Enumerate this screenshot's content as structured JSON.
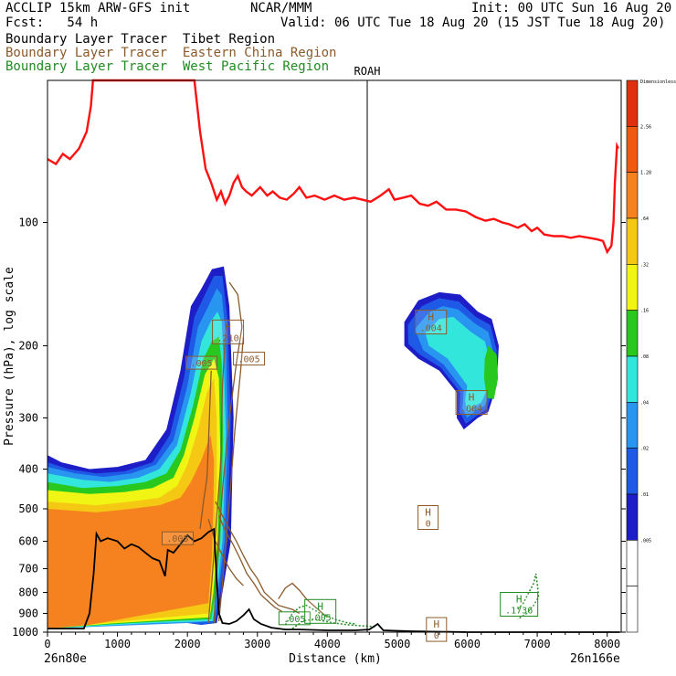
{
  "header": {
    "left1": "ACCLIP 15km ARW-GFS init",
    "center1": "NCAR/MMM",
    "right1": "Init: 00 UTC Sun 16 Aug 20",
    "left2": "Fcst:   54 h",
    "right2": "Valid: 06 UTC Tue 18 Aug 20 (15 JST Tue 18 Aug 20)",
    "legend": [
      {
        "text": "Boundary Layer Tracer  Tibet Region",
        "color": "#000000"
      },
      {
        "text": "Boundary Layer Tracer  Eastern China Region",
        "color": "#8B5A2B"
      },
      {
        "text": "Boundary Layer Tracer  West Pacific Region",
        "color": "#228B22"
      }
    ]
  },
  "chart_data": {
    "type": "cross-section",
    "xlabel": "Distance (km)",
    "ylabel": "Pressure (hPa), log scale",
    "xlim": [
      0,
      8200
    ],
    "ylim": [
      1000,
      45
    ],
    "x_ticks": [
      "0",
      "1000",
      "2000",
      "3000",
      "4000",
      "5000",
      "6000",
      "7000",
      "8000"
    ],
    "y_ticks": [
      "100",
      "200",
      "300",
      "400",
      "500",
      "600",
      "700",
      "800",
      "900",
      "1000"
    ],
    "start_label": "26n80e",
    "end_label": "26n166e",
    "station": {
      "name": "ROAH",
      "x": 4570
    },
    "colorbar": {
      "labels": [
        "Dimensionless",
        "2.56",
        "1.28",
        ".64",
        ".32",
        ".16",
        ".08",
        ".04",
        ".02",
        ".01",
        ".005"
      ],
      "colors": [
        "#e03010",
        "#f05a10",
        "#f5821e",
        "#f5c814",
        "#f0f514",
        "#28c81e",
        "#32e6dc",
        "#2896f0",
        "#1e5ae6",
        "#1e1ec8",
        "#ffffff",
        "#ffffff"
      ]
    },
    "labels": [
      {
        "letter": "H",
        "value": ".210",
        "x": 2580,
        "p": 185,
        "color": "#8B5A2B"
      },
      {
        "value": ".005",
        "x": 2200,
        "p": 220,
        "color": "#8B5A2B"
      },
      {
        "value": ".005",
        "x": 2880,
        "p": 215,
        "color": "#8B5A2B"
      },
      {
        "letter": "H",
        "value": ".004",
        "x": 5480,
        "p": 175,
        "color": "#8B5A2B"
      },
      {
        "letter": "H",
        "value": ".004",
        "x": 6060,
        "p": 275,
        "color": "#8B5A2B"
      },
      {
        "letter": "H",
        "value": "0",
        "x": 5440,
        "p": 525,
        "color": "#8B5A2B"
      },
      {
        "value": ".005",
        "x": 1860,
        "p": 590,
        "color": "#8B5A2B"
      },
      {
        "letter": "H",
        "value": "0",
        "x": 5560,
        "p": 985,
        "color": "#8B5A2B"
      },
      {
        "value": ".005",
        "x": 3530,
        "p": 925,
        "color": "#228B22"
      },
      {
        "letter": "H",
        "value": ".005",
        "x": 3900,
        "p": 890,
        "color": "#228B22"
      },
      {
        "letter": "H",
        "value": ".1736",
        "x": 6740,
        "p": 855,
        "color": "#228B22"
      }
    ],
    "tropopause": [
      [
        0,
        70
      ],
      [
        120,
        72
      ],
      [
        220,
        68
      ],
      [
        320,
        70
      ],
      [
        450,
        66
      ],
      [
        560,
        60
      ],
      [
        620,
        52
      ],
      [
        650,
        44
      ],
      [
        2100,
        44
      ],
      [
        2180,
        60
      ],
      [
        2260,
        74
      ],
      [
        2340,
        80
      ],
      [
        2420,
        88
      ],
      [
        2480,
        84
      ],
      [
        2540,
        90
      ],
      [
        2600,
        86
      ],
      [
        2660,
        80
      ],
      [
        2720,
        77
      ],
      [
        2780,
        82
      ],
      [
        2840,
        84
      ],
      [
        2920,
        86
      ],
      [
        3040,
        82
      ],
      [
        3140,
        86
      ],
      [
        3220,
        84
      ],
      [
        3320,
        87
      ],
      [
        3420,
        88
      ],
      [
        3520,
        85
      ],
      [
        3600,
        82
      ],
      [
        3700,
        87
      ],
      [
        3820,
        86
      ],
      [
        3960,
        88
      ],
      [
        4100,
        86
      ],
      [
        4240,
        88
      ],
      [
        4380,
        87
      ],
      [
        4500,
        88
      ],
      [
        4620,
        89
      ],
      [
        4760,
        86
      ],
      [
        4880,
        83
      ],
      [
        4960,
        88
      ],
      [
        5080,
        87
      ],
      [
        5200,
        86
      ],
      [
        5320,
        90
      ],
      [
        5440,
        91
      ],
      [
        5560,
        89
      ],
      [
        5700,
        93
      ],
      [
        5840,
        93
      ],
      [
        5980,
        94
      ],
      [
        6120,
        97
      ],
      [
        6260,
        99
      ],
      [
        6380,
        98
      ],
      [
        6500,
        100
      ],
      [
        6600,
        101
      ],
      [
        6720,
        103
      ],
      [
        6820,
        101
      ],
      [
        6920,
        105
      ],
      [
        7000,
        103
      ],
      [
        7100,
        107
      ],
      [
        7240,
        108
      ],
      [
        7360,
        108
      ],
      [
        7480,
        109
      ],
      [
        7600,
        108
      ],
      [
        7740,
        109
      ],
      [
        7860,
        110
      ],
      [
        7940,
        111
      ],
      [
        8000,
        118
      ],
      [
        8060,
        114
      ],
      [
        8090,
        100
      ],
      [
        8110,
        80
      ],
      [
        8140,
        65
      ],
      [
        8160,
        66
      ]
    ],
    "terrain": [
      [
        0,
        980
      ],
      [
        520,
        980
      ],
      [
        600,
        900
      ],
      [
        660,
        720
      ],
      [
        700,
        575
      ],
      [
        760,
        600
      ],
      [
        860,
        590
      ],
      [
        1000,
        600
      ],
      [
        1100,
        625
      ],
      [
        1200,
        610
      ],
      [
        1300,
        620
      ],
      [
        1400,
        640
      ],
      [
        1500,
        660
      ],
      [
        1600,
        670
      ],
      [
        1680,
        730
      ],
      [
        1720,
        630
      ],
      [
        1800,
        640
      ],
      [
        1900,
        610
      ],
      [
        2000,
        580
      ],
      [
        2100,
        600
      ],
      [
        2200,
        590
      ],
      [
        2300,
        570
      ],
      [
        2380,
        560
      ],
      [
        2420,
        750
      ],
      [
        2450,
        900
      ],
      [
        2500,
        950
      ],
      [
        2600,
        955
      ],
      [
        2700,
        940
      ],
      [
        2800,
        910
      ],
      [
        2880,
        880
      ],
      [
        2950,
        930
      ],
      [
        3050,
        955
      ],
      [
        3200,
        975
      ],
      [
        3400,
        985
      ],
      [
        3600,
        985
      ],
      [
        4000,
        990
      ],
      [
        4400,
        990
      ],
      [
        4600,
        985
      ],
      [
        4720,
        955
      ],
      [
        4800,
        990
      ],
      [
        5200,
        995
      ],
      [
        6000,
        1000
      ],
      [
        7000,
        1000
      ],
      [
        8180,
        1000
      ]
    ]
  }
}
